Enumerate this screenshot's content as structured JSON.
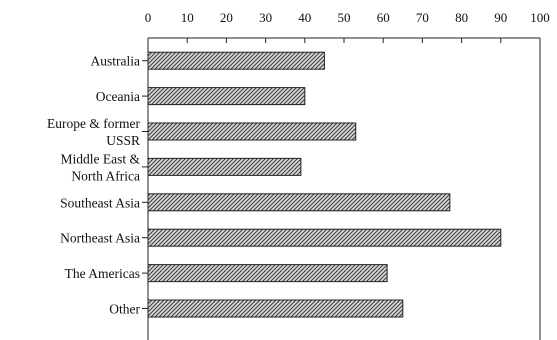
{
  "chart_data": {
    "type": "bar",
    "orientation": "horizontal",
    "categories": [
      [
        "Australia"
      ],
      [
        "Oceania"
      ],
      [
        "Europe & former",
        "USSR"
      ],
      [
        "Middle East &",
        "North Africa"
      ],
      [
        "Southeast Asia"
      ],
      [
        "Northeast Asia"
      ],
      [
        "The Americas"
      ],
      [
        "Other"
      ]
    ],
    "values": [
      45,
      40,
      53,
      39,
      77,
      90,
      61,
      65
    ],
    "xlim": [
      0,
      100
    ],
    "xticks": [
      0,
      10,
      20,
      30,
      40,
      50,
      60,
      70,
      80,
      90,
      100
    ],
    "xaxis_position": "top",
    "title": "",
    "xlabel": "",
    "ylabel": "",
    "grid": false,
    "legend": "none",
    "colors": {
      "bar_fill": "#9a9a9a",
      "bar_edge": "#222222",
      "axis": "#222222"
    }
  }
}
